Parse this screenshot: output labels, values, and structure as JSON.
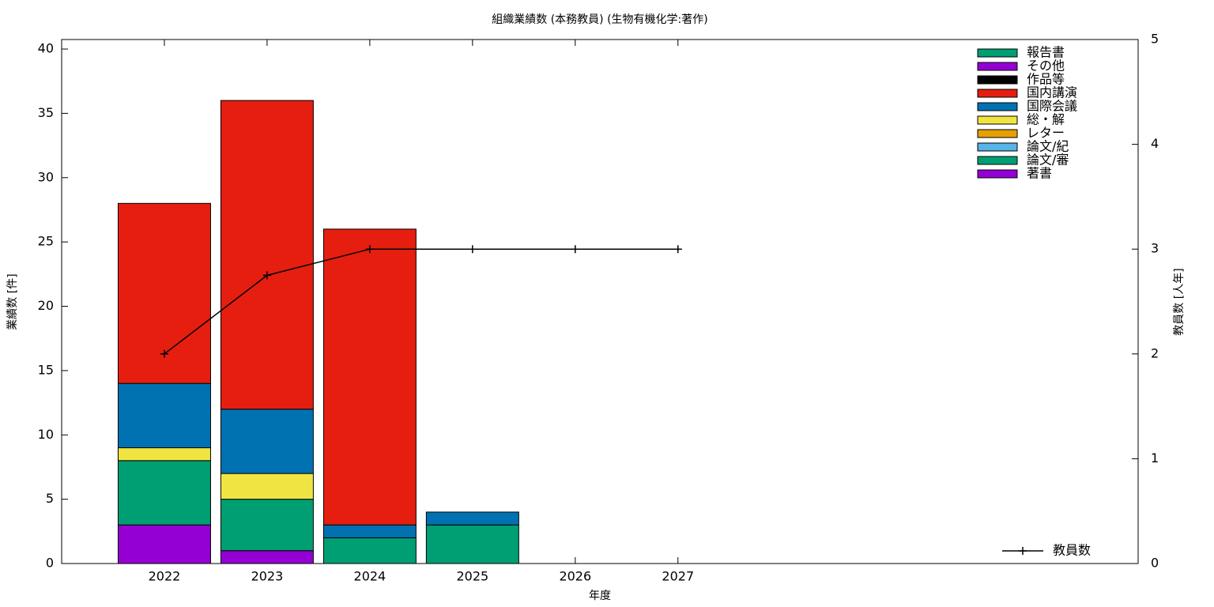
{
  "chart_data": {
    "type": "bar",
    "title": "組織業績数 (本務教員) (生物有機化学:著作)",
    "x_label": "年度",
    "y_label": "業績数 [件]",
    "y2_label": "教員数 [人年]",
    "x": [
      2022,
      2023,
      2024,
      2025,
      2026,
      2027
    ],
    "xlim": [
      2021,
      2031.48
    ],
    "xticks": [
      2022,
      2023,
      2024,
      2025,
      2026,
      2027
    ],
    "ylim": [
      0,
      40.74
    ],
    "yticks": [
      0,
      5,
      10,
      15,
      20,
      25,
      30,
      35,
      40
    ],
    "y2lim": [
      0,
      5
    ],
    "y2ticks": [
      0,
      1,
      2,
      3,
      4,
      5
    ],
    "stacked": true,
    "bar_width": 0.9,
    "series": [
      {
        "name": "著書",
        "color": "#9400d3",
        "type": "bar",
        "values": [
          3,
          1,
          0,
          0,
          0,
          0
        ]
      },
      {
        "name": "論文/審",
        "color": "#009e73",
        "type": "bar",
        "values": [
          5,
          4,
          2,
          3,
          0,
          0
        ]
      },
      {
        "name": "論文/紀",
        "color": "#56b4e9",
        "type": "bar",
        "values": [
          0,
          0,
          0,
          0,
          0,
          0
        ]
      },
      {
        "name": "レター",
        "color": "#e69f00",
        "type": "bar",
        "values": [
          0,
          0,
          0,
          0,
          0,
          0
        ]
      },
      {
        "name": "総・解",
        "color": "#f0e442",
        "type": "bar",
        "values": [
          1,
          2,
          0,
          0,
          0,
          0
        ]
      },
      {
        "name": "国際会議",
        "color": "#0072b2",
        "type": "bar",
        "values": [
          5,
          5,
          1,
          1,
          0,
          0
        ]
      },
      {
        "name": "国内講演",
        "color": "#e51e10",
        "type": "bar",
        "values": [
          14,
          24,
          23,
          0,
          0,
          0
        ]
      },
      {
        "name": "作品等",
        "color": "#000000",
        "type": "bar",
        "values": [
          0,
          0,
          0,
          0,
          0,
          0
        ]
      },
      {
        "name": "その他",
        "color": "#9400d3",
        "type": "bar",
        "values": [
          0,
          0,
          0,
          0,
          0,
          0
        ]
      },
      {
        "name": "報告書",
        "color": "#009e73",
        "type": "bar",
        "values": [
          0,
          0,
          0,
          0,
          0,
          0
        ]
      },
      {
        "name": "教員数",
        "color": "#000000",
        "type": "line",
        "axis": "y2",
        "values": [
          2,
          2.75,
          3,
          3,
          3,
          3
        ]
      }
    ]
  }
}
